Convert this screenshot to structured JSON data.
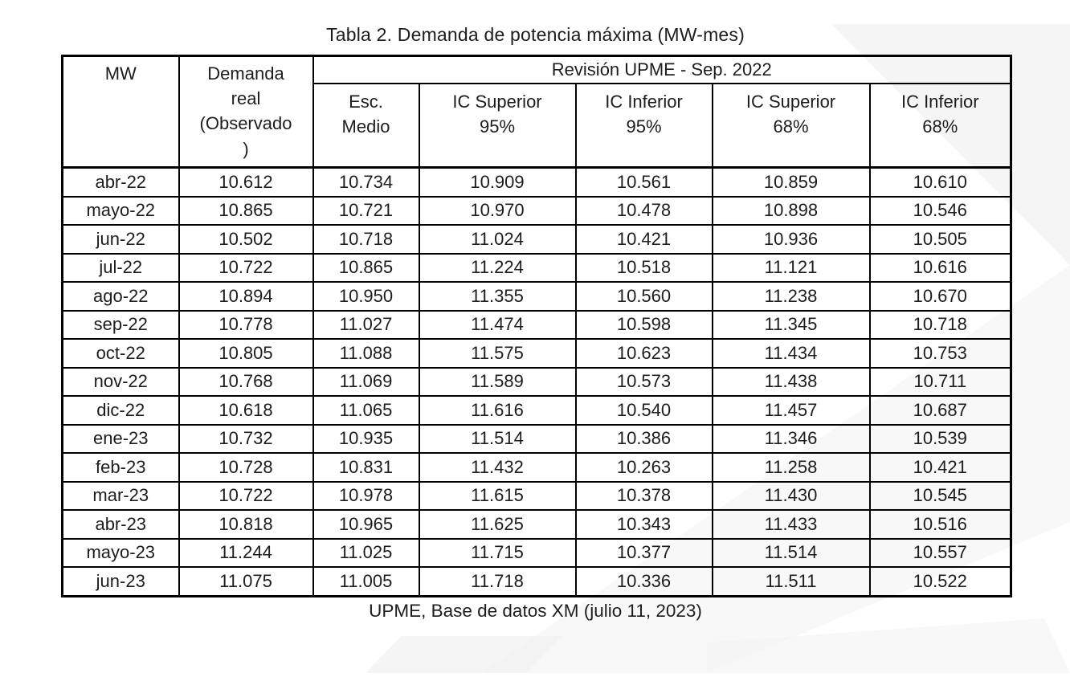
{
  "page": {
    "title": "Tabla 2. Demanda de potencia máxima (MW-mes)",
    "caption": "UPME, Base de datos XM (julio 11, 2023)"
  },
  "table": {
    "corner_header": "MW",
    "demand_header_lines": [
      "Demanda",
      "real",
      "(Observado",
      ")"
    ],
    "group_header": "Revisión UPME - Sep. 2022",
    "sub_headers": [
      {
        "l1": "Esc.",
        "l2": "Medio"
      },
      {
        "l1": "IC Superior",
        "l2": "95%"
      },
      {
        "l1": "IC Inferior",
        "l2": "95%"
      },
      {
        "l1": "IC Superior",
        "l2": "68%"
      },
      {
        "l1": "IC Inferior",
        "l2": "68%"
      }
    ],
    "rows": [
      {
        "month": "abr-22",
        "values": [
          "10.612",
          "10.734",
          "10.909",
          "10.561",
          "10.859",
          "10.610"
        ]
      },
      {
        "month": "mayo-22",
        "values": [
          "10.865",
          "10.721",
          "10.970",
          "10.478",
          "10.898",
          "10.546"
        ]
      },
      {
        "month": "jun-22",
        "values": [
          "10.502",
          "10.718",
          "11.024",
          "10.421",
          "10.936",
          "10.505"
        ]
      },
      {
        "month": "jul-22",
        "values": [
          "10.722",
          "10.865",
          "11.224",
          "10.518",
          "11.121",
          "10.616"
        ]
      },
      {
        "month": "ago-22",
        "values": [
          "10.894",
          "10.950",
          "11.355",
          "10.560",
          "11.238",
          "10.670"
        ]
      },
      {
        "month": "sep-22",
        "values": [
          "10.778",
          "11.027",
          "11.474",
          "10.598",
          "11.345",
          "10.718"
        ]
      },
      {
        "month": "oct-22",
        "values": [
          "10.805",
          "11.088",
          "11.575",
          "10.623",
          "11.434",
          "10.753"
        ]
      },
      {
        "month": "nov-22",
        "values": [
          "10.768",
          "11.069",
          "11.589",
          "10.573",
          "11.438",
          "10.711"
        ]
      },
      {
        "month": "dic-22",
        "values": [
          "10.618",
          "11.065",
          "11.616",
          "10.540",
          "11.457",
          "10.687"
        ]
      },
      {
        "month": "ene-23",
        "values": [
          "10.732",
          "10.935",
          "11.514",
          "10.386",
          "11.346",
          "10.539"
        ]
      },
      {
        "month": "feb-23",
        "values": [
          "10.728",
          "10.831",
          "11.432",
          "10.263",
          "11.258",
          "10.421"
        ]
      },
      {
        "month": "mar-23",
        "values": [
          "10.722",
          "10.978",
          "11.615",
          "10.378",
          "11.430",
          "10.545"
        ]
      },
      {
        "month": "abr-23",
        "values": [
          "10.818",
          "10.965",
          "11.625",
          "10.343",
          "11.433",
          "10.516"
        ]
      },
      {
        "month": "mayo-23",
        "values": [
          "11.244",
          "11.025",
          "11.715",
          "10.377",
          "11.514",
          "10.557"
        ]
      },
      {
        "month": "jun-23",
        "values": [
          "11.075",
          "11.005",
          "11.718",
          "10.336",
          "11.511",
          "10.522"
        ]
      }
    ]
  },
  "colors": {
    "border": "#000000",
    "text": "#1d1d1d",
    "watermark_light": "#f2f2f2",
    "watermark_lighter": "#f6f6f6"
  }
}
